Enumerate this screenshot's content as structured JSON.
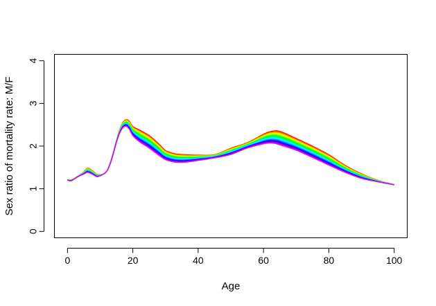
{
  "chart_data": {
    "type": "line",
    "title": "",
    "xlabel": "Age",
    "ylabel": "Sex ratio of mortality rate: M/F",
    "xlim": [
      -4,
      104
    ],
    "ylim": [
      -0.15,
      4.15
    ],
    "xticks": [
      0,
      20,
      40,
      60,
      80,
      100
    ],
    "yticks": [
      0,
      1,
      2,
      3,
      4
    ],
    "grid": false,
    "legend": "none",
    "palette": "rainbow (red → magenta), one curve per series",
    "x": [
      0,
      1,
      2,
      3,
      4,
      5,
      6,
      7,
      8,
      9,
      10,
      11,
      12,
      13,
      14,
      15,
      16,
      17,
      18,
      19,
      20,
      22,
      25,
      28,
      30,
      33,
      36,
      40,
      45,
      50,
      55,
      60,
      62,
      64,
      66,
      70,
      75,
      80,
      85,
      90,
      95,
      100
    ],
    "envelope": {
      "upper": [
        1.22,
        1.21,
        1.24,
        1.29,
        1.34,
        1.4,
        1.48,
        1.46,
        1.4,
        1.34,
        1.33,
        1.35,
        1.42,
        1.6,
        1.86,
        2.15,
        2.4,
        2.56,
        2.62,
        2.58,
        2.46,
        2.38,
        2.25,
        2.05,
        1.9,
        1.82,
        1.8,
        1.79,
        1.8,
        1.95,
        2.08,
        2.28,
        2.34,
        2.36,
        2.32,
        2.18,
        2.0,
        1.8,
        1.55,
        1.35,
        1.2,
        1.1
      ],
      "lower": [
        1.2,
        1.18,
        1.22,
        1.27,
        1.31,
        1.34,
        1.38,
        1.36,
        1.32,
        1.28,
        1.3,
        1.34,
        1.4,
        1.56,
        1.8,
        2.08,
        2.3,
        2.43,
        2.46,
        2.38,
        2.24,
        2.1,
        1.95,
        1.78,
        1.68,
        1.62,
        1.62,
        1.66,
        1.72,
        1.8,
        1.95,
        2.05,
        2.07,
        2.05,
        2.0,
        1.9,
        1.73,
        1.55,
        1.38,
        1.24,
        1.16,
        1.09
      ]
    }
  }
}
